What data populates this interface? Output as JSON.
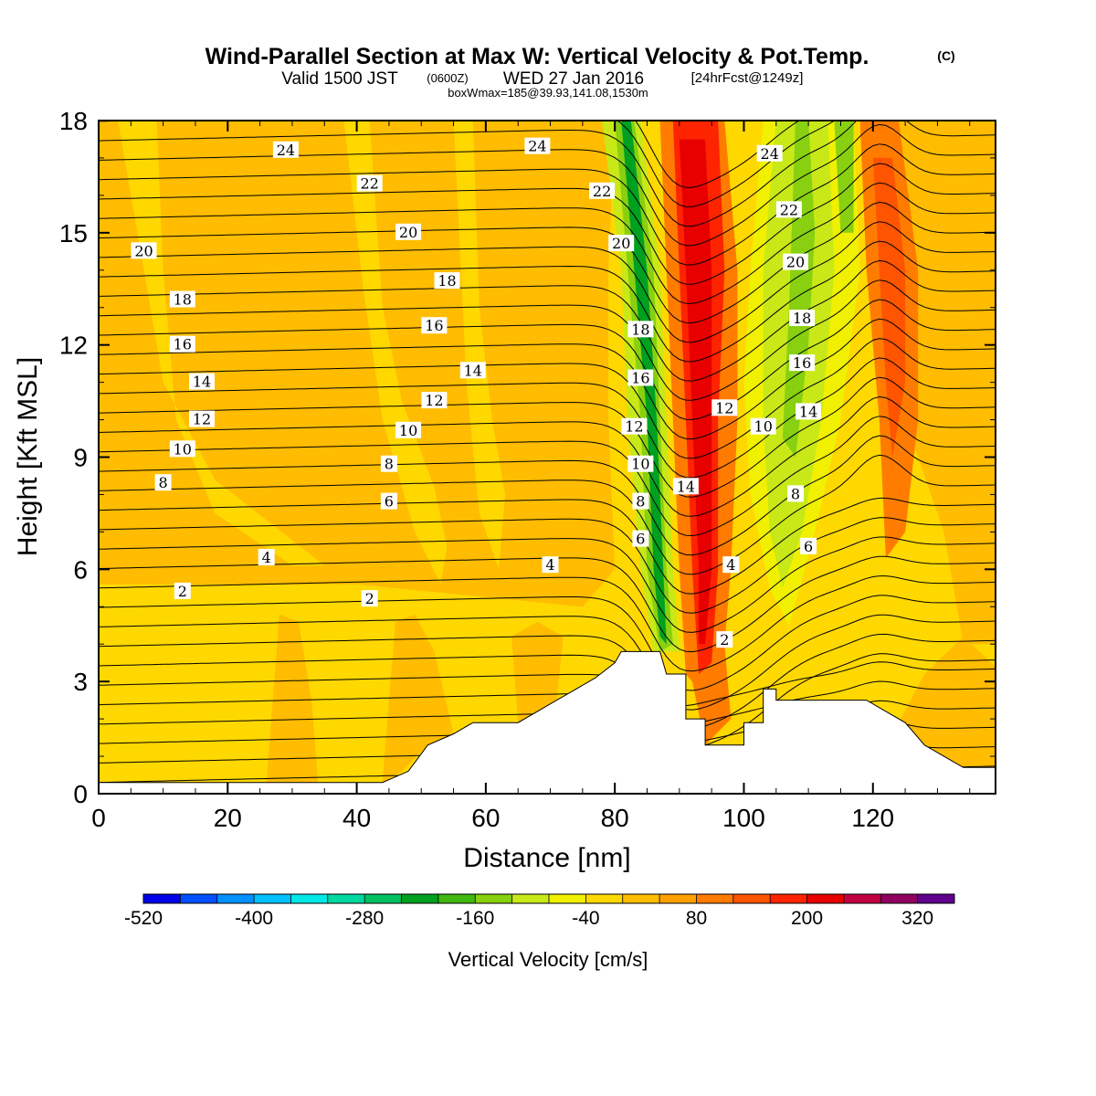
{
  "chart_data": {
    "type": "heatmap",
    "title": "Wind-Parallel Section at Max W: Vertical Velocity & Pot.Temp.",
    "title_mark": "(C)",
    "subtitle_valid": "Valid 1500 JST",
    "subtitle_utc": "(0600Z)",
    "subtitle_date": "WED 27 Jan 2016",
    "subtitle_fcst": "[24hrFcst@1249z]",
    "subtitle_box": "boxWmax=185@39.93,141.08,1530m",
    "xlabel": "Distance [nm]",
    "ylabel": "Height [Kft MSL]",
    "xlim": [
      0,
      139
    ],
    "ylim": [
      0,
      18
    ],
    "x_ticks": [
      "0",
      "20",
      "40",
      "60",
      "80",
      "100",
      "120"
    ],
    "y_ticks": [
      "0",
      "3",
      "6",
      "9",
      "12",
      "15",
      "18"
    ],
    "colorbar_label": "Vertical Velocity [cm/s]",
    "colorbar_ticks": [
      "-520",
      "-400",
      "-280",
      "-160",
      "-40",
      "80",
      "200",
      "320"
    ],
    "colorbar_colors": [
      "#0000e8",
      "#0050ff",
      "#0090ff",
      "#00c0ff",
      "#00e8e8",
      "#00d8a0",
      "#00c060",
      "#00a020",
      "#40b810",
      "#88d010",
      "#c8e818",
      "#f0f000",
      "#ffd800",
      "#ffbc00",
      "#ffa000",
      "#ff7c00",
      "#ff5400",
      "#ff2400",
      "#e80000",
      "#c00040",
      "#900060",
      "#60008c"
    ],
    "terrain": [
      [
        0,
        0.3
      ],
      [
        44,
        0.3
      ],
      [
        48,
        0.6
      ],
      [
        51,
        1.3
      ],
      [
        55,
        1.6
      ],
      [
        58,
        1.9
      ],
      [
        65,
        1.9
      ],
      [
        68,
        2.2
      ],
      [
        71,
        2.5
      ],
      [
        74,
        2.8
      ],
      [
        77,
        3.1
      ],
      [
        80,
        3.5
      ],
      [
        81,
        3.8
      ],
      [
        87,
        3.8
      ],
      [
        88,
        3.2
      ],
      [
        91,
        3.2
      ],
      [
        91,
        2.0
      ],
      [
        94,
        2.0
      ],
      [
        94,
        1.3
      ],
      [
        100,
        1.3
      ],
      [
        100,
        1.9
      ],
      [
        103,
        1.9
      ],
      [
        103,
        2.8
      ],
      [
        105,
        2.8
      ],
      [
        105,
        2.5
      ],
      [
        119,
        2.5
      ],
      [
        122,
        2.2
      ],
      [
        125,
        1.9
      ],
      [
        128,
        1.3
      ],
      [
        131,
        1.0
      ],
      [
        134,
        0.7
      ],
      [
        139,
        0.7
      ]
    ],
    "contour_labels": [
      {
        "text": "24",
        "x": 29,
        "y": 17.2
      },
      {
        "text": "24",
        "x": 68,
        "y": 17.3
      },
      {
        "text": "24",
        "x": 104,
        "y": 17.1
      },
      {
        "text": "22",
        "x": 42,
        "y": 16.3
      },
      {
        "text": "22",
        "x": 78,
        "y": 16.1
      },
      {
        "text": "22",
        "x": 107,
        "y": 15.6
      },
      {
        "text": "20",
        "x": 7,
        "y": 14.5
      },
      {
        "text": "20",
        "x": 48,
        "y": 15.0
      },
      {
        "text": "20",
        "x": 81,
        "y": 14.7
      },
      {
        "text": "20",
        "x": 108,
        "y": 14.2
      },
      {
        "text": "18",
        "x": 13,
        "y": 13.2
      },
      {
        "text": "18",
        "x": 54,
        "y": 13.7
      },
      {
        "text": "18",
        "x": 84,
        "y": 12.4
      },
      {
        "text": "18",
        "x": 109,
        "y": 12.7
      },
      {
        "text": "16",
        "x": 13,
        "y": 12.0
      },
      {
        "text": "16",
        "x": 52,
        "y": 12.5
      },
      {
        "text": "16",
        "x": 84,
        "y": 11.1
      },
      {
        "text": "16",
        "x": 109,
        "y": 11.5
      },
      {
        "text": "14",
        "x": 16,
        "y": 11.0
      },
      {
        "text": "14",
        "x": 58,
        "y": 11.3
      },
      {
        "text": "14",
        "x": 91,
        "y": 8.2
      },
      {
        "text": "14",
        "x": 110,
        "y": 10.2
      },
      {
        "text": "12",
        "x": 16,
        "y": 10.0
      },
      {
        "text": "12",
        "x": 52,
        "y": 10.5
      },
      {
        "text": "12",
        "x": 83,
        "y": 9.8
      },
      {
        "text": "12",
        "x": 97,
        "y": 10.3
      },
      {
        "text": "10",
        "x": 13,
        "y": 9.2
      },
      {
        "text": "10",
        "x": 48,
        "y": 9.7
      },
      {
        "text": "10",
        "x": 84,
        "y": 8.8
      },
      {
        "text": "10",
        "x": 103,
        "y": 9.8
      },
      {
        "text": "8",
        "x": 10,
        "y": 8.3
      },
      {
        "text": "8",
        "x": 45,
        "y": 8.8
      },
      {
        "text": "8",
        "x": 84,
        "y": 7.8
      },
      {
        "text": "8",
        "x": 108,
        "y": 8.0
      },
      {
        "text": "6",
        "x": 45,
        "y": 7.8
      },
      {
        "text": "6",
        "x": 84,
        "y": 6.8
      },
      {
        "text": "6",
        "x": 110,
        "y": 6.6
      },
      {
        "text": "4",
        "x": 26,
        "y": 6.3
      },
      {
        "text": "4",
        "x": 70,
        "y": 6.1
      },
      {
        "text": "4",
        "x": 98,
        "y": 6.1
      },
      {
        "text": "2",
        "x": 13,
        "y": 5.4
      },
      {
        "text": "2",
        "x": 42,
        "y": 5.2
      },
      {
        "text": "2",
        "x": 97,
        "y": 4.1
      }
    ]
  }
}
